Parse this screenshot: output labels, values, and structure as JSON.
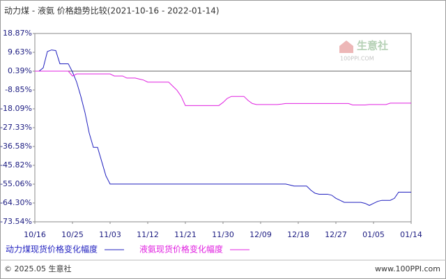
{
  "chart_data": {
    "type": "line",
    "title": "动力煤 - 液氨 价格趋势比较(2021-10-16 - 2022-01-14)",
    "watermark": {
      "name": "生意社",
      "site": "100PPI.COM"
    },
    "footer": {
      "left": "© 2025.05 生意社",
      "right": "www.100PPI.com"
    },
    "x": [
      "10/16",
      "10/17",
      "10/18",
      "10/19",
      "10/20",
      "10/21",
      "10/22",
      "10/23",
      "10/24",
      "10/25",
      "10/26",
      "10/27",
      "10/28",
      "10/29",
      "10/30",
      "10/31",
      "11/01",
      "11/02",
      "11/03",
      "11/04",
      "11/05",
      "11/06",
      "11/07",
      "11/08",
      "11/09",
      "11/10",
      "11/11",
      "11/12",
      "11/13",
      "11/14",
      "11/15",
      "11/16",
      "11/17",
      "11/18",
      "11/19",
      "11/20",
      "11/21",
      "11/22",
      "11/23",
      "11/24",
      "11/25",
      "11/26",
      "11/27",
      "11/28",
      "11/29",
      "11/30",
      "12/01",
      "12/02",
      "12/03",
      "12/04",
      "12/05",
      "12/06",
      "12/07",
      "12/08",
      "12/09",
      "12/10",
      "12/11",
      "12/12",
      "12/13",
      "12/14",
      "12/15",
      "12/16",
      "12/17",
      "12/18",
      "12/19",
      "12/20",
      "12/21",
      "12/22",
      "12/23",
      "12/24",
      "12/25",
      "12/26",
      "12/27",
      "12/28",
      "12/29",
      "12/30",
      "12/31",
      "01/01",
      "01/02",
      "01/03",
      "01/04",
      "01/05",
      "01/06",
      "01/07",
      "01/08",
      "01/09",
      "01/10",
      "01/11",
      "01/12",
      "01/13",
      "01/14"
    ],
    "xticks": [
      "10/16",
      "10/25",
      "11/03",
      "11/12",
      "11/21",
      "11/30",
      "12/09",
      "12/18",
      "12/27",
      "01/05",
      "01/14"
    ],
    "series": [
      {
        "name": "动力煤现货价格变化幅度",
        "color": "#1f1fbf",
        "values": [
          0.39,
          0.39,
          2,
          10,
          10.8,
          10.5,
          4,
          4,
          4,
          0,
          -5,
          -12,
          -20,
          -30,
          -37,
          -37,
          -44,
          -51,
          -55,
          -55,
          -55,
          -55,
          -55,
          -55,
          -55,
          -55,
          -55,
          -55,
          -55,
          -55,
          -55,
          -55,
          -55,
          -55,
          -55,
          -55,
          -55,
          -55,
          -55,
          -55,
          -55,
          -55,
          -55,
          -55,
          -55,
          -55,
          -55,
          -55,
          -55,
          -55,
          -55,
          -55,
          -55,
          -55,
          -55,
          -55,
          -55,
          -55,
          -55,
          -55,
          -55,
          -55.5,
          -56,
          -56,
          -56,
          -56,
          -58,
          -59.5,
          -60,
          -60,
          -60,
          -60.5,
          -62,
          -63,
          -64,
          -64,
          -64,
          -64,
          -64,
          -64.5,
          -65.5,
          -64.5,
          -63.5,
          -63,
          -63,
          -63,
          -62,
          -59,
          -59,
          -59,
          -59
        ]
      },
      {
        "name": "液氨现货价格变化幅度",
        "color": "#e020e0",
        "values": [
          0.39,
          0.39,
          0.39,
          0.39,
          0.39,
          0.39,
          0.39,
          0.39,
          0.39,
          -2,
          -1,
          -1,
          -1,
          -1,
          -1,
          -1,
          -1,
          -1,
          -1,
          -2,
          -2,
          -2,
          -3,
          -3,
          -3,
          -3.5,
          -4,
          -5,
          -5,
          -5,
          -5,
          -5,
          -5,
          -7,
          -9,
          -12,
          -16.5,
          -16.5,
          -16.5,
          -16.5,
          -16.5,
          -16.5,
          -16.5,
          -16.5,
          -16.5,
          -15,
          -13,
          -12,
          -12,
          -12,
          -12,
          -14,
          -15.5,
          -16,
          -16,
          -16,
          -16,
          -16,
          -16,
          -15.8,
          -15.5,
          -15.5,
          -15.5,
          -15.5,
          -15.5,
          -15.5,
          -15.5,
          -15.5,
          -15.5,
          -15.5,
          -15.5,
          -15.5,
          -15.5,
          -15.5,
          -15.5,
          -15.5,
          -16.2,
          -16.2,
          -16.2,
          -16.2,
          -16,
          -16,
          -16,
          -16,
          -16,
          -15.3,
          -15.3,
          -15.3,
          -15.3,
          -15.3,
          -15.3
        ]
      }
    ],
    "ylim": [
      -73.54,
      18.87
    ],
    "yticks": [
      {
        "value": 18.87,
        "label": "18.87%"
      },
      {
        "value": 9.63,
        "label": "9.63%"
      },
      {
        "value": 0.39,
        "label": "0.39%"
      },
      {
        "value": -8.85,
        "label": "-8.85%"
      },
      {
        "value": -18.09,
        "label": "-18.09%"
      },
      {
        "value": -27.33,
        "label": "-27.33%"
      },
      {
        "value": -36.58,
        "label": "-36.58%"
      },
      {
        "value": -45.82,
        "label": "-45.82%"
      },
      {
        "value": -55.06,
        "label": "-55.06%"
      },
      {
        "value": -64.3,
        "label": "-64.30%"
      },
      {
        "value": -73.54,
        "label": "-73.54%"
      }
    ],
    "baseline": 0.39,
    "grid": false
  }
}
